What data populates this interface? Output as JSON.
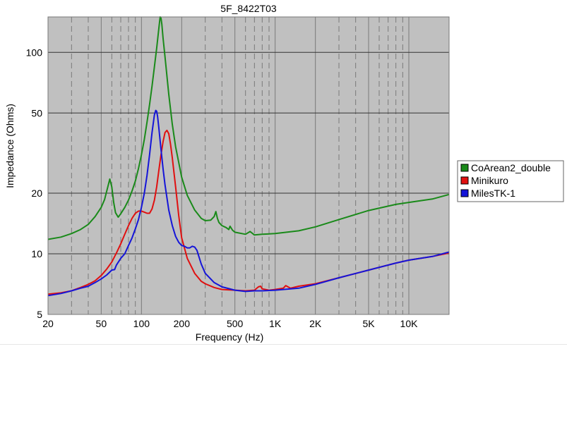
{
  "chart_data": {
    "type": "line",
    "title": "5F_8422T03",
    "xlabel": "Frequency (Hz)",
    "ylabel": "Impedance (Ohms)",
    "x_scale": "log",
    "y_scale": "log",
    "xlim": [
      20,
      20000
    ],
    "ylim": [
      5,
      150
    ],
    "x_ticks": [
      {
        "value": 20,
        "label": "20"
      },
      {
        "value": 50,
        "label": "50"
      },
      {
        "value": 100,
        "label": "100"
      },
      {
        "value": 200,
        "label": "200"
      },
      {
        "value": 500,
        "label": "500"
      },
      {
        "value": 1000,
        "label": "1K"
      },
      {
        "value": 2000,
        "label": "2K"
      },
      {
        "value": 5000,
        "label": "5K"
      },
      {
        "value": 10000,
        "label": "10K"
      }
    ],
    "y_ticks": [
      {
        "value": 5,
        "label": "5"
      },
      {
        "value": 10,
        "label": "10"
      },
      {
        "value": 20,
        "label": "20"
      },
      {
        "value": 50,
        "label": "50"
      },
      {
        "value": 100,
        "label": "100"
      }
    ],
    "grid": true,
    "legend_position": "right",
    "series": [
      {
        "name": "CoArean2_double",
        "color": "#1a8a1a",
        "x": [
          20,
          25,
          30,
          35,
          40,
          45,
          50,
          53,
          56,
          58,
          60,
          62,
          64,
          67,
          70,
          75,
          80,
          85,
          90,
          95,
          100,
          105,
          110,
          115,
          120,
          125,
          130,
          135,
          138,
          140,
          142,
          145,
          150,
          160,
          170,
          180,
          200,
          220,
          250,
          280,
          300,
          330,
          350,
          360,
          370,
          380,
          400,
          430,
          450,
          460,
          480,
          500,
          600,
          650,
          700,
          800,
          1000,
          1500,
          2000,
          3000,
          5000,
          8000,
          10000,
          15000,
          20000
        ],
        "y": [
          11.8,
          12.1,
          12.6,
          13.2,
          14.0,
          15.3,
          17.0,
          18.6,
          21.5,
          23.5,
          21.5,
          18.0,
          16.0,
          15.2,
          15.8,
          17.0,
          18.5,
          20.5,
          23.0,
          26.5,
          31.0,
          37.0,
          45.0,
          55.0,
          68.0,
          85.0,
          105.0,
          132.0,
          150.0,
          148.0,
          138.0,
          118.0,
          95.0,
          62.0,
          44.0,
          34.0,
          24.0,
          19.5,
          16.5,
          15.0,
          14.6,
          14.7,
          15.3,
          16.2,
          15.0,
          14.3,
          13.8,
          13.5,
          13.2,
          13.7,
          13.1,
          12.8,
          12.5,
          12.9,
          12.4,
          12.5,
          12.6,
          13.0,
          13.6,
          14.8,
          16.4,
          17.6,
          18.0,
          18.7,
          19.7
        ]
      },
      {
        "name": "Minikuro",
        "color": "#e01010",
        "x": [
          20,
          25,
          30,
          35,
          40,
          45,
          50,
          55,
          60,
          65,
          70,
          75,
          80,
          85,
          90,
          95,
          100,
          105,
          110,
          115,
          120,
          125,
          130,
          135,
          140,
          145,
          150,
          155,
          160,
          165,
          170,
          180,
          190,
          200,
          220,
          250,
          280,
          300,
          350,
          400,
          500,
          600,
          700,
          750,
          780,
          800,
          900,
          1000,
          1150,
          1200,
          1300,
          1500,
          2000,
          3000,
          5000,
          8000,
          10000,
          15000,
          20000
        ],
        "y": [
          6.3,
          6.4,
          6.55,
          6.8,
          7.05,
          7.35,
          7.8,
          8.4,
          9.1,
          10.1,
          11.2,
          12.5,
          13.8,
          15.0,
          15.9,
          16.3,
          16.3,
          16.1,
          15.9,
          15.9,
          16.7,
          18.5,
          21.5,
          26.0,
          31.0,
          36.0,
          40.0,
          41.0,
          39.5,
          35.0,
          30.0,
          21.5,
          15.5,
          12.0,
          9.5,
          8.0,
          7.3,
          7.1,
          6.8,
          6.65,
          6.6,
          6.55,
          6.6,
          6.85,
          6.9,
          6.7,
          6.6,
          6.65,
          6.75,
          6.95,
          6.75,
          6.9,
          7.1,
          7.6,
          8.3,
          9.0,
          9.3,
          9.7,
          10.1
        ]
      },
      {
        "name": "MilesTK-1",
        "color": "#1515d8",
        "x": [
          20,
          25,
          30,
          35,
          40,
          45,
          50,
          55,
          60,
          63,
          65,
          70,
          75,
          80,
          85,
          90,
          95,
          100,
          105,
          110,
          115,
          120,
          125,
          128,
          130,
          132,
          135,
          140,
          145,
          150,
          160,
          170,
          180,
          190,
          200,
          210,
          220,
          230,
          240,
          250,
          260,
          280,
          300,
          350,
          400,
          500,
          600,
          700,
          800,
          1000,
          1500,
          2000,
          3000,
          5000,
          8000,
          10000,
          15000,
          20000
        ],
        "y": [
          6.2,
          6.35,
          6.55,
          6.75,
          6.9,
          7.2,
          7.5,
          7.85,
          8.3,
          8.35,
          8.8,
          9.5,
          10.0,
          11.0,
          12.0,
          13.3,
          14.8,
          17.0,
          20.0,
          24.5,
          31.0,
          40.0,
          49.0,
          51.5,
          51.0,
          48.0,
          42.0,
          33.0,
          26.5,
          22.0,
          16.5,
          13.8,
          12.2,
          11.4,
          11.0,
          10.9,
          10.7,
          10.7,
          10.9,
          10.8,
          10.4,
          8.9,
          8.0,
          7.2,
          6.85,
          6.6,
          6.5,
          6.55,
          6.55,
          6.6,
          6.75,
          7.05,
          7.6,
          8.3,
          9.0,
          9.3,
          9.7,
          10.2
        ]
      }
    ]
  }
}
